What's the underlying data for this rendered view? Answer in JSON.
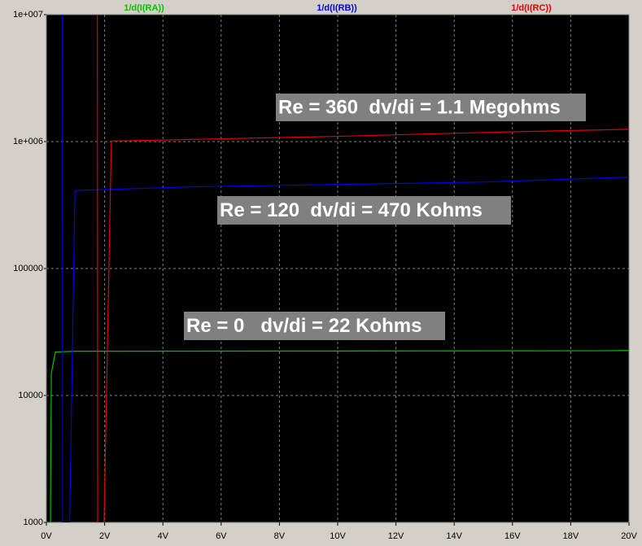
{
  "chart_data": {
    "type": "line",
    "ylog": true,
    "grid": true,
    "xlim": [
      0,
      20
    ],
    "ylim": [
      1000,
      10000000
    ],
    "xticks": [
      {
        "value": 0,
        "label": "0V"
      },
      {
        "value": 2,
        "label": "2V"
      },
      {
        "value": 4,
        "label": "4V"
      },
      {
        "value": 6,
        "label": "6V"
      },
      {
        "value": 8,
        "label": "8V"
      },
      {
        "value": 10,
        "label": "10V"
      },
      {
        "value": 12,
        "label": "12V"
      },
      {
        "value": 14,
        "label": "14V"
      },
      {
        "value": 16,
        "label": "16V"
      },
      {
        "value": 18,
        "label": "18V"
      },
      {
        "value": 20,
        "label": "20V"
      }
    ],
    "yticks": [
      1000,
      10000,
      100000,
      {
        "value": 1000000,
        "label": "1e+006"
      },
      {
        "value": 10000000,
        "label": "1e+007"
      }
    ],
    "series": [
      {
        "name": "1/d(I(RA))",
        "color": "#00c000",
        "x": [
          0.14,
          0.17,
          0.31,
          1,
          10,
          19,
          20
        ],
        "values": [
          1000,
          15000,
          22000,
          22300,
          22400,
          22500,
          22600
        ]
      },
      {
        "name": "1/d(I(RB))",
        "color": "#0000e0",
        "x": [
          0.55,
          0.56,
          0.8,
          0.98,
          5,
          10,
          15,
          20
        ],
        "values": [
          10000000,
          1000,
          1000,
          412000,
          440000,
          460000,
          480000,
          525000
        ]
      },
      {
        "name": "1/d(I(RC))",
        "color": "#e00000",
        "x": [
          1.75,
          1.76,
          1.98,
          2.23,
          5,
          10,
          15,
          20
        ],
        "values": [
          10000000,
          1000,
          1000,
          1010000,
          1040000,
          1100000,
          1180000,
          1250000
        ]
      }
    ],
    "annotations": [
      "Re = 360  dv/di = 1.1 Megohms",
      "Re = 120  dv/di = 470 Kohms",
      "Re = 0   dv/di = 22 Kohms"
    ]
  }
}
